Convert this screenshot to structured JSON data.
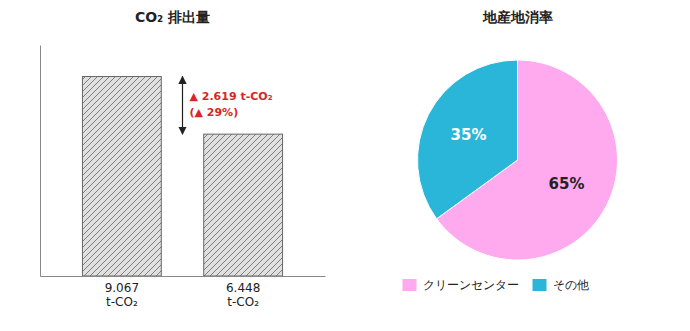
{
  "chart_data": [
    {
      "type": "bar",
      "title": "CO₂ 排出量",
      "values": [
        9.067,
        6.448
      ],
      "value_labels": [
        "9.067\nt-CO₂",
        "6.448\nt-CO₂"
      ],
      "data_labels": true,
      "color": "#e0e0e0",
      "ylim": [
        0,
        10.5
      ],
      "tick_labels": false,
      "annotations": [
        "▲ 2.619 t-CO₂",
        "(▲ 29%)"
      ]
    },
    {
      "type": "pie",
      "title": "地産地消率",
      "categories": [
        "クリーンセンター",
        "その他"
      ],
      "values": [
        65,
        35
      ],
      "value_labels": [
        "65%",
        "35%"
      ],
      "data_labels": true,
      "colors": [
        "#ffaaee",
        "#29b6d8"
      ],
      "legend": "bottom"
    }
  ]
}
